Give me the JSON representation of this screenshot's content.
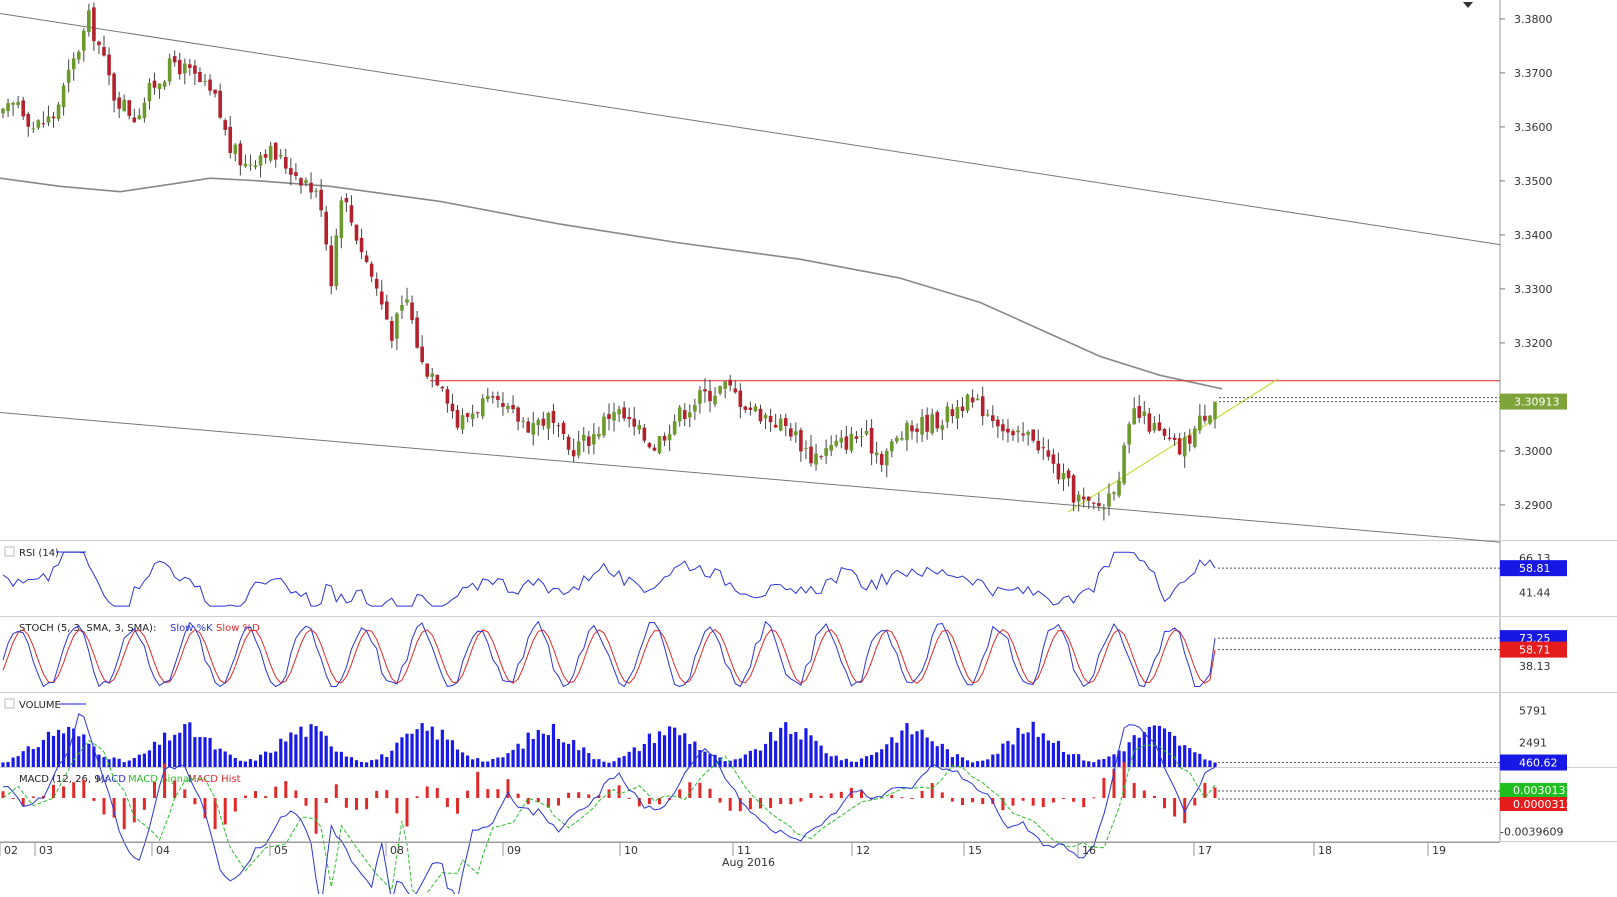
{
  "chart_data": {
    "type": "candlestick",
    "period": "Aug 2016",
    "x_day_labels": [
      "02",
      "03",
      "04",
      "05",
      "08",
      "09",
      "10",
      "11",
      "12",
      "15",
      "16",
      "17",
      "18",
      "19"
    ],
    "main": {
      "y_ticks": [
        "3.3800",
        "3.3700",
        "3.3600",
        "3.3500",
        "3.3400",
        "3.3300",
        "3.3200",
        "3.3000",
        "3.2900"
      ],
      "y_tick_values": [
        3.38,
        3.37,
        3.36,
        3.35,
        3.34,
        3.33,
        3.32,
        3.3,
        3.29
      ],
      "ylim": [
        3.2835,
        3.3835
      ],
      "last_price": "3.30913",
      "last_price_value": 3.30913,
      "colors": {
        "up": "#6c9a2c",
        "down": "#b3222c",
        "wick": "#444444",
        "last_price_bg": "#7ea33b"
      },
      "overlays": {
        "channel_upper": {
          "from": 3.381,
          "to": 3.3382,
          "color": "#777777"
        },
        "channel_lower": {
          "from": 3.3071,
          "to": 3.2831,
          "color": "#777777"
        },
        "resistance": {
          "value": 3.313,
          "color": "#e02a2a"
        },
        "support_trendline": {
          "from": 3.2887,
          "to": 3.3133,
          "color": "#c8dc3c"
        },
        "moving_average": {
          "color": "#888888"
        }
      }
    },
    "rsi": {
      "title": "RSI (14)",
      "ticks": [
        "66.13",
        "41.44"
      ],
      "tick_values": [
        66.13,
        41.44
      ],
      "ylim": [
        25,
        78
      ],
      "last": "58.81",
      "last_value": 58.81,
      "color": "#2a35d8"
    },
    "stoch": {
      "title": "STOCH (5, 3, SMA, 3, SMA):",
      "legend": [
        {
          "name": "Slow %K",
          "color": "#2a35d8"
        },
        {
          "name": "Slow %D",
          "color": "#e02a2a"
        }
      ],
      "ticks": [
        "73.25",
        "38.13"
      ],
      "tick_values": [
        73.25,
        38.13
      ],
      "ylim": [
        5,
        100
      ],
      "last_k": "73.25",
      "last_d": "58.71"
    },
    "volume": {
      "title": "VOLUME",
      "ticks": [
        "5791",
        "2491"
      ],
      "tick_values": [
        5791,
        2491
      ],
      "ylim": [
        0,
        7600
      ],
      "last": "460.62",
      "last_value": 460.62,
      "color": "#1a1ae6"
    },
    "macd": {
      "title": "MACD (12, 26, 9):",
      "legend": [
        {
          "name": "MACD",
          "color": "#2a35d8"
        },
        {
          "name": "MACD Signal",
          "color": "#2ebd2e"
        },
        {
          "name": "MACD Hist",
          "color": "#e02a2a"
        }
      ],
      "ticks": [
        "-0.0039609"
      ],
      "tick_values": [
        -0.0039609
      ],
      "last_macd": "0.0030131",
      "last_hist": "0.0000313"
    }
  }
}
